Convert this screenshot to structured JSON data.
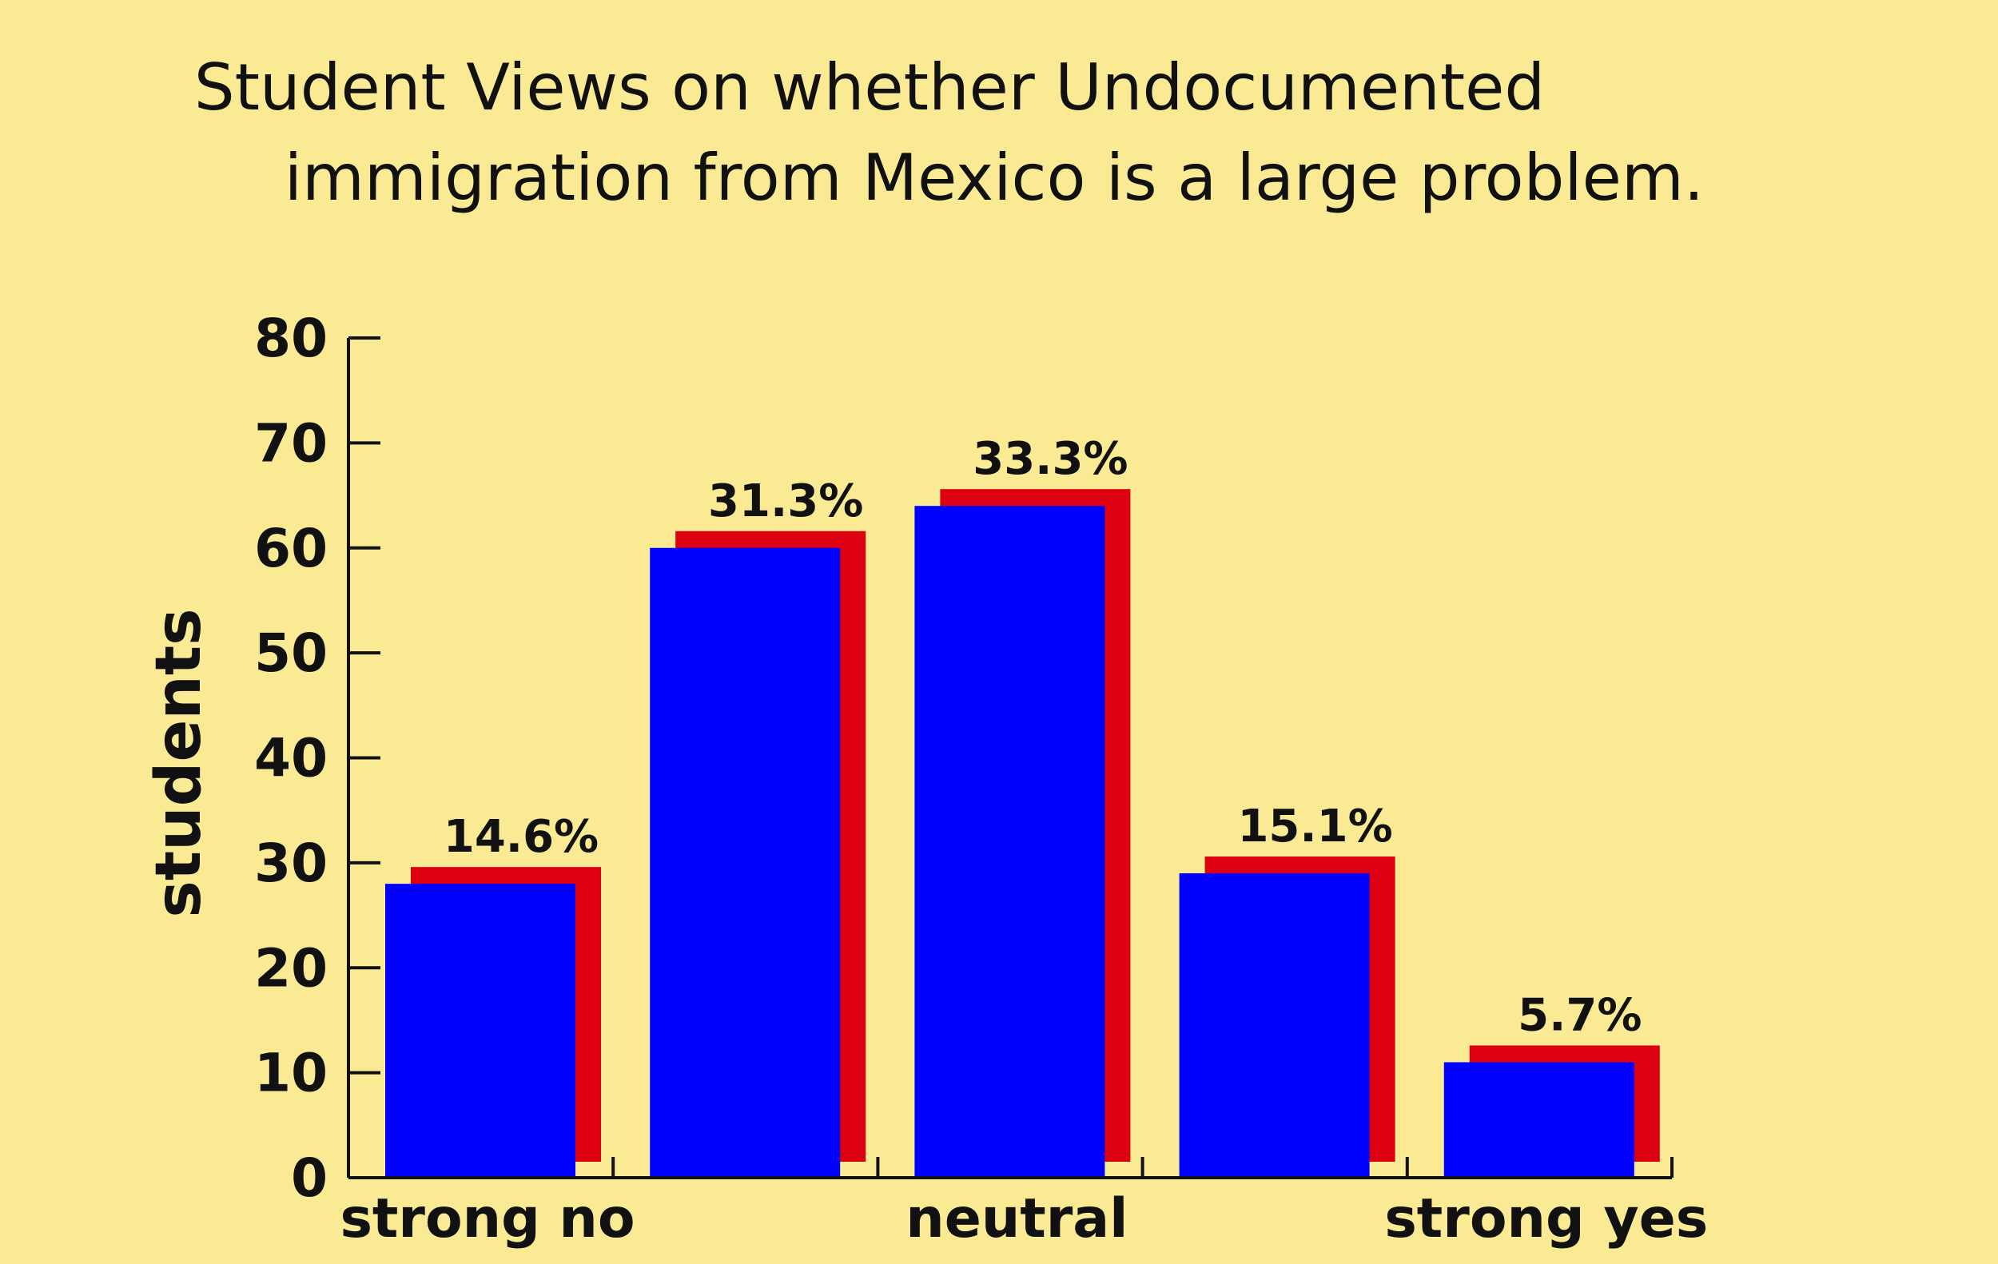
{
  "chart_data": {
    "type": "bar",
    "title": [
      "Student Views on whether Undocumented",
      "immigration from Mexico is a large problem."
    ],
    "xlabel": "",
    "ylabel": "students",
    "ylim": [
      0,
      80
    ],
    "yticks": [
      "0",
      "10",
      "20",
      "30",
      "40",
      "50",
      "60",
      "70",
      "80"
    ],
    "categories": [
      "strong no",
      "",
      "neutral",
      "",
      "strong yes"
    ],
    "values": [
      28,
      60,
      64,
      29,
      11
    ],
    "data_labels": [
      "14.6%",
      "31.3%",
      "33.3%",
      "15.1%",
      "5.7%"
    ],
    "grid": false,
    "legend": "none",
    "colors": {
      "bar": "#0000ff",
      "shadow": "#dd0010",
      "background": "#faea94",
      "text": "#111111"
    }
  }
}
